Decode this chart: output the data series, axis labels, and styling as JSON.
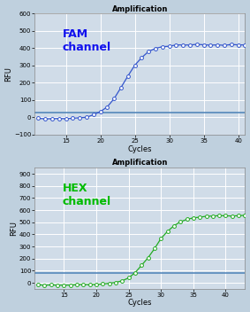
{
  "fam": {
    "title": "Amplification",
    "label": "FAM\nchannel",
    "label_color": "#1111EE",
    "line_color": "#3355CC",
    "marker_color": "#3355CC",
    "threshold": 30,
    "threshold_color": "#5588BB",
    "xlim": [
      10.5,
      41
    ],
    "ylim": [
      -100,
      600
    ],
    "yticks": [
      -100,
      0,
      100,
      200,
      300,
      400,
      500,
      600
    ],
    "xticks": [
      15,
      20,
      25,
      30,
      35,
      40
    ],
    "xlabel": "Cycles",
    "ylabel": "RFU",
    "sigmoid_midpoint": 23.5,
    "sigmoid_scale": 0.65,
    "sigmoid_max": 420,
    "sigmoid_base": -8,
    "x_start": 11,
    "x_end": 41
  },
  "hex": {
    "title": "Amplification",
    "label": "HEX\nchannel",
    "label_color": "#00BB00",
    "line_color": "#22AA22",
    "marker_color": "#22AA22",
    "threshold": 80,
    "threshold_color": "#5588BB",
    "xlim": [
      10.5,
      43
    ],
    "ylim": [
      -50,
      950
    ],
    "yticks": [
      0,
      100,
      200,
      300,
      400,
      500,
      600,
      700,
      800,
      900
    ],
    "xticks": [
      15,
      20,
      25,
      30,
      35,
      40
    ],
    "xlabel": "Cycles",
    "ylabel": "RFU",
    "sigmoid_midpoint": 28.8,
    "sigmoid_scale": 0.55,
    "sigmoid_max": 555,
    "sigmoid_base": -18,
    "x_start": 11,
    "x_end": 43
  },
  "background_color": "#D0DCE8",
  "grid_color": "#FFFFFF",
  "fig_bg": "#BFD0DE"
}
